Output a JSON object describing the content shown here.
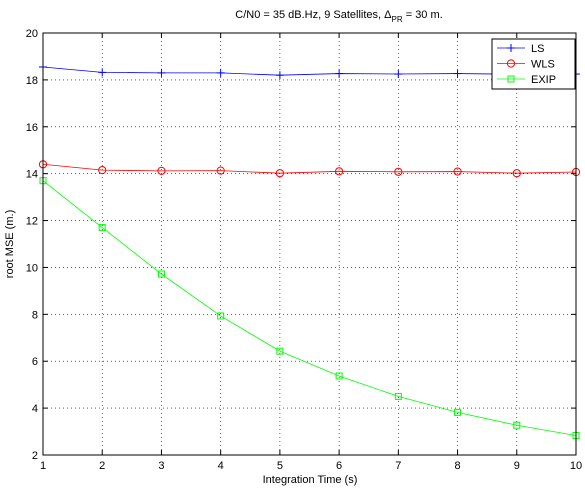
{
  "chart_data": {
    "type": "line",
    "title": {
      "prefix": "C/N0 = 35 dB.Hz, 9 Satellites, ",
      "delta": "Δ",
      "subscript": "PR",
      "suffix": " = 30 m."
    },
    "xlabel": "Integration Time (s)",
    "ylabel": "root MSE (m.)",
    "xlim": [
      1,
      10
    ],
    "ylim": [
      2,
      20
    ],
    "xticks": [
      1,
      2,
      3,
      4,
      5,
      6,
      7,
      8,
      9,
      10
    ],
    "yticks": [
      2,
      4,
      6,
      8,
      10,
      12,
      14,
      16,
      18,
      20
    ],
    "grid": "dotted",
    "legend_position": "top-right",
    "x": [
      1,
      2,
      3,
      4,
      5,
      6,
      7,
      8,
      9,
      10
    ],
    "series": [
      {
        "name": "LS",
        "color": "#0000ff",
        "marker": "plus",
        "values": [
          18.55,
          18.32,
          18.3,
          18.3,
          18.2,
          18.27,
          18.25,
          18.27,
          18.24,
          18.25
        ]
      },
      {
        "name": "WLS",
        "color": "#ff0000",
        "marker": "circle",
        "values": [
          14.4,
          14.15,
          14.12,
          14.13,
          14.02,
          14.1,
          14.08,
          14.09,
          14.02,
          14.07
        ]
      },
      {
        "name": "EXIP",
        "color": "#00ff00",
        "marker": "square",
        "values": [
          13.7,
          11.7,
          9.72,
          7.93,
          6.43,
          5.37,
          4.5,
          3.82,
          3.27,
          2.83
        ]
      }
    ]
  }
}
